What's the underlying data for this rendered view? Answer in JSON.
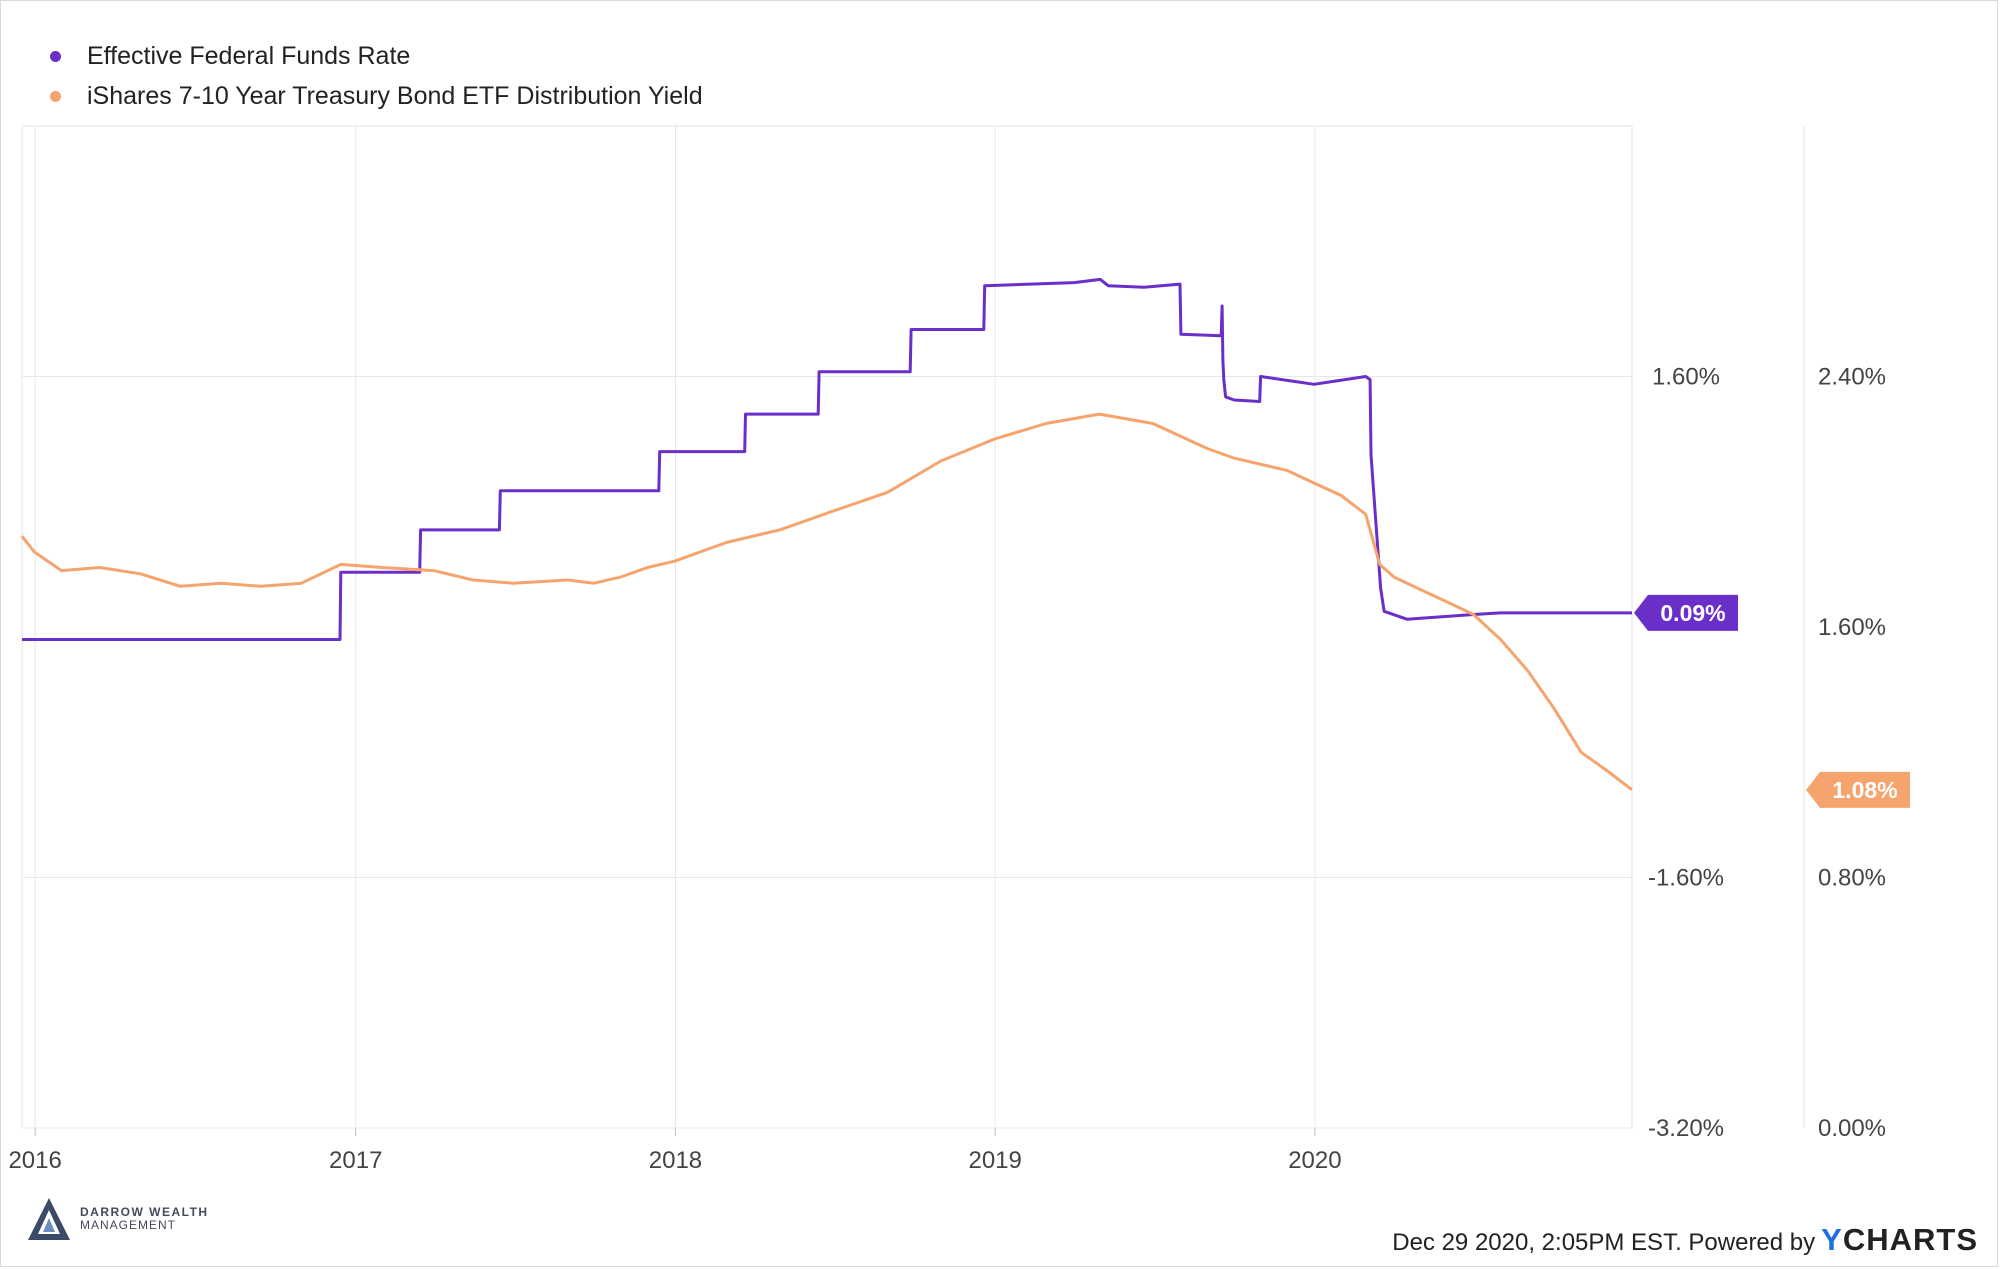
{
  "chart_data": {
    "type": "line",
    "series": [
      {
        "name": "Effective Federal Funds Rate",
        "color": "#6a2fc8",
        "axis": "left",
        "last_value_label": "0.09%",
        "points": [
          [
            "2015-12-17",
            -0.08
          ],
          [
            "2016-12-14",
            -0.08
          ],
          [
            "2016-12-15",
            0.35
          ],
          [
            "2017-03-15",
            0.35
          ],
          [
            "2017-03-16",
            0.62
          ],
          [
            "2017-06-14",
            0.62
          ],
          [
            "2017-06-15",
            0.87
          ],
          [
            "2017-12-13",
            0.87
          ],
          [
            "2017-12-14",
            1.12
          ],
          [
            "2018-03-21",
            1.12
          ],
          [
            "2018-03-22",
            1.36
          ],
          [
            "2018-06-13",
            1.36
          ],
          [
            "2018-06-14",
            1.63
          ],
          [
            "2018-09-26",
            1.63
          ],
          [
            "2018-09-27",
            1.9
          ],
          [
            "2018-12-19",
            1.9
          ],
          [
            "2018-12-20",
            2.18
          ],
          [
            "2019-04-01",
            2.2
          ],
          [
            "2019-05-01",
            2.22
          ],
          [
            "2019-05-10",
            2.18
          ],
          [
            "2019-06-20",
            2.17
          ],
          [
            "2019-07-31",
            2.19
          ],
          [
            "2019-08-01",
            1.87
          ],
          [
            "2019-09-16",
            1.86
          ],
          [
            "2019-09-17",
            2.05
          ],
          [
            "2019-09-18",
            1.7
          ],
          [
            "2019-09-19",
            1.58
          ],
          [
            "2019-09-21",
            1.47
          ],
          [
            "2019-10-01",
            1.45
          ],
          [
            "2019-10-30",
            1.44
          ],
          [
            "2019-10-31",
            1.6
          ],
          [
            "2019-12-31",
            1.55
          ],
          [
            "2020-02-28",
            1.6
          ],
          [
            "2020-03-04",
            1.58
          ],
          [
            "2020-03-05",
            1.1
          ],
          [
            "2020-03-16",
            0.25
          ],
          [
            "2020-03-20",
            0.1
          ],
          [
            "2020-04-15",
            0.05
          ],
          [
            "2020-06-30",
            0.08
          ],
          [
            "2020-07-31",
            0.09
          ],
          [
            "2020-12-28",
            0.09
          ]
        ]
      },
      {
        "name": "iShares 7-10 Year Treasury Bond ETF Distribution Yield",
        "color": "#f5a46e",
        "axis": "right",
        "last_value_label": "1.08%",
        "points": [
          [
            "2015-12-17",
            1.89
          ],
          [
            "2015-12-31",
            1.84
          ],
          [
            "2016-01-31",
            1.78
          ],
          [
            "2016-03-15",
            1.79
          ],
          [
            "2016-04-30",
            1.77
          ],
          [
            "2016-06-15",
            1.73
          ],
          [
            "2016-07-31",
            1.74
          ],
          [
            "2016-09-15",
            1.73
          ],
          [
            "2016-10-31",
            1.74
          ],
          [
            "2016-12-15",
            1.8
          ],
          [
            "2017-01-31",
            1.79
          ],
          [
            "2017-03-31",
            1.78
          ],
          [
            "2017-05-15",
            1.75
          ],
          [
            "2017-06-30",
            1.74
          ],
          [
            "2017-08-31",
            1.75
          ],
          [
            "2017-09-30",
            1.74
          ],
          [
            "2017-10-31",
            1.76
          ],
          [
            "2017-11-30",
            1.79
          ],
          [
            "2017-12-31",
            1.81
          ],
          [
            "2018-02-28",
            1.87
          ],
          [
            "2018-04-30",
            1.91
          ],
          [
            "2018-06-30",
            1.97
          ],
          [
            "2018-08-31",
            2.03
          ],
          [
            "2018-10-31",
            2.13
          ],
          [
            "2018-12-31",
            2.2
          ],
          [
            "2019-02-28",
            2.25
          ],
          [
            "2019-04-30",
            2.28
          ],
          [
            "2019-06-30",
            2.25
          ],
          [
            "2019-07-31",
            2.21
          ],
          [
            "2019-08-31",
            2.17
          ],
          [
            "2019-09-30",
            2.14
          ],
          [
            "2019-11-30",
            2.1
          ],
          [
            "2019-12-31",
            2.06
          ],
          [
            "2020-01-31",
            2.02
          ],
          [
            "2020-02-28",
            1.96
          ],
          [
            "2020-03-15",
            1.8
          ],
          [
            "2020-03-31",
            1.76
          ],
          [
            "2020-04-30",
            1.72
          ],
          [
            "2020-05-31",
            1.68
          ],
          [
            "2020-06-30",
            1.64
          ],
          [
            "2020-07-31",
            1.56
          ],
          [
            "2020-08-31",
            1.46
          ],
          [
            "2020-09-30",
            1.34
          ],
          [
            "2020-10-31",
            1.2
          ],
          [
            "2020-11-30",
            1.14
          ],
          [
            "2020-12-28",
            1.08
          ]
        ]
      }
    ],
    "x_range": [
      "2015-12-17",
      "2020-12-28"
    ],
    "x_ticks": [
      "2016",
      "2017",
      "2018",
      "2019",
      "2020"
    ],
    "y_left": {
      "range": [
        -3.2,
        3.2
      ],
      "ticks": [
        "1.60%",
        "-1.60%",
        "-3.20%"
      ]
    },
    "y_right": {
      "range": [
        0.0,
        3.2
      ],
      "ticks": [
        "2.40%",
        "1.60%",
        "0.80%",
        "0.00%"
      ]
    },
    "grid": true,
    "legend_position": "top-left"
  },
  "branding": {
    "logo_line1": "DARROW WEALTH",
    "logo_line2": "MANAGEMENT",
    "footer_text": "Dec 29 2020, 2:05PM EST. Powered by",
    "ycharts_y": "Y",
    "ycharts_rest": "CHARTS"
  }
}
